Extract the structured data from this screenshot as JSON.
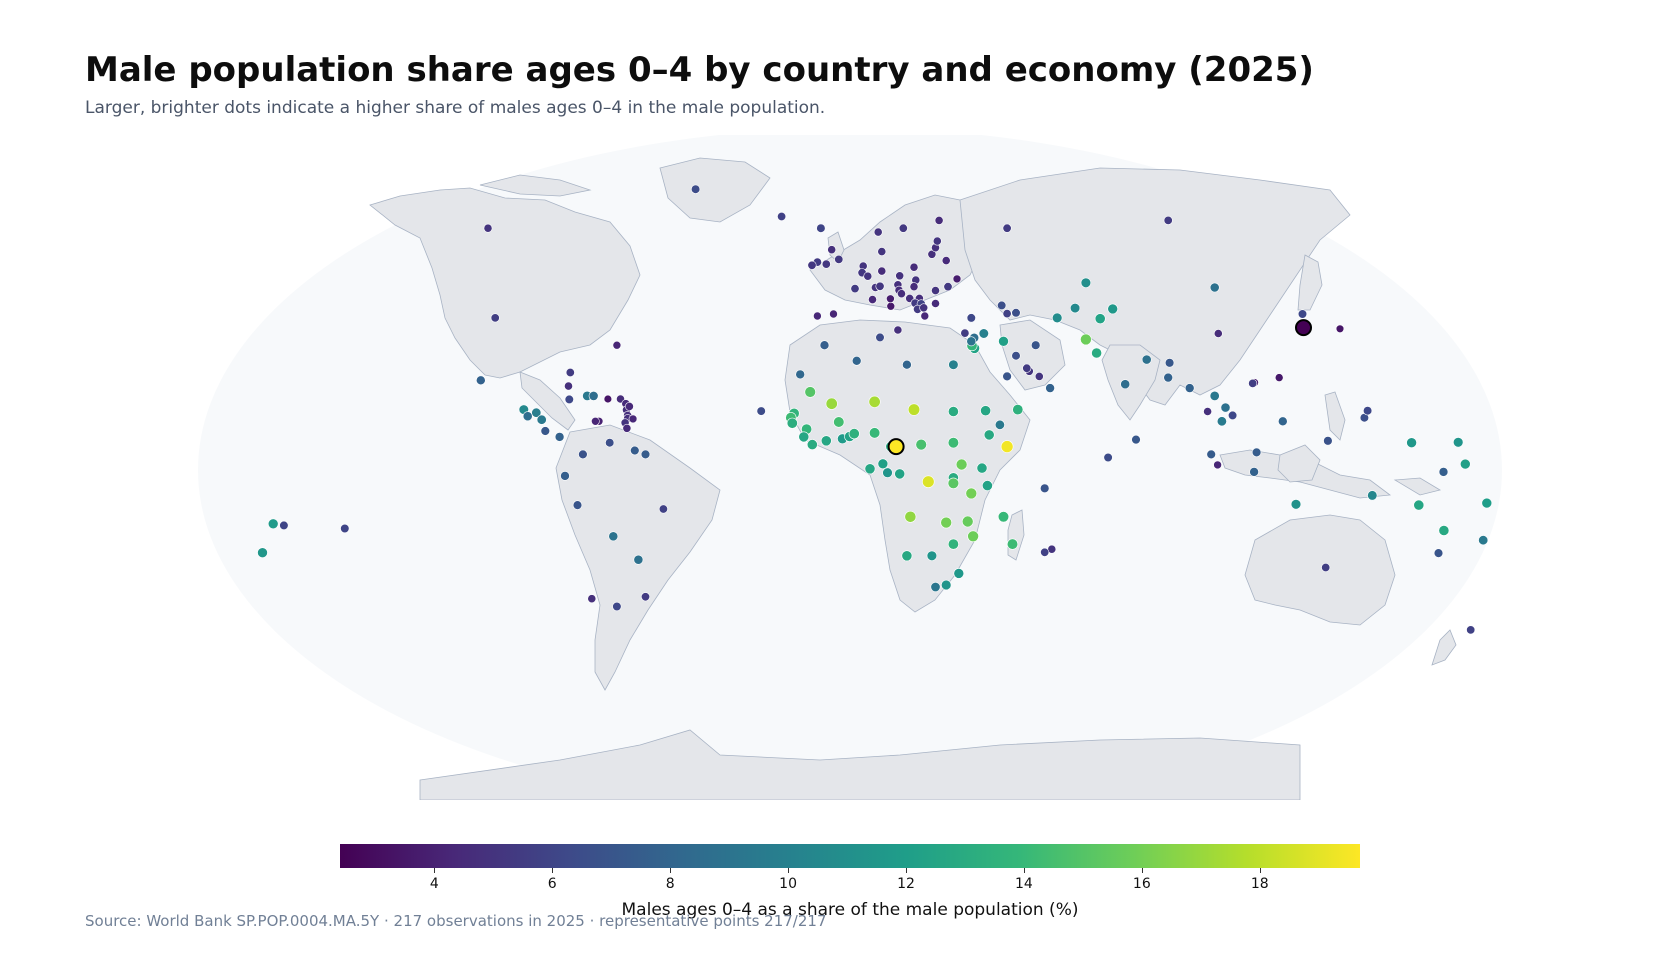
{
  "title": "Male population share ages 0–4 by country and economy (2025)",
  "subtitle": "Larger, brighter dots indicate a higher share of males ages 0–4 in the male population.",
  "source": "Source: World Bank SP.POP.0004.MA.5Y · 217 observations in 2025 · representative points 217/217",
  "colors": {
    "ocean": "#f7f9fb",
    "land": "#e4e6ea",
    "coast": "#a8b3c4",
    "scale": [
      "#440154",
      "#482878",
      "#3e4989",
      "#31688e",
      "#26828e",
      "#1f9e89",
      "#35b779",
      "#6ece58",
      "#b5de2b",
      "#fde725"
    ]
  },
  "colorbar": {
    "label": "Males ages 0–4 as a share of the male population (%)",
    "min": 2.4,
    "max": 19.7,
    "ticks": [
      "4",
      "6",
      "8",
      "10",
      "12",
      "14",
      "16",
      "18"
    ]
  },
  "chart_data": {
    "type": "scatter",
    "title": "Male population share ages 0–4 by country and economy (2025)",
    "value_label": "Males ages 0–4 as a share of the male population (%)",
    "points": [
      {
        "lon": -42,
        "lat": 72,
        "v": 6.4
      },
      {
        "lon": -18,
        "lat": 65,
        "v": 5.8
      },
      {
        "lon": -100,
        "lat": 62,
        "v": 5.0
      },
      {
        "lon": -98,
        "lat": 39,
        "v": 5.6
      },
      {
        "lon": -102,
        "lat": 23,
        "v": 7.8
      },
      {
        "lon": -64,
        "lat": 32,
        "v": 4.2
      },
      {
        "lon": -90,
        "lat": 15.5,
        "v": 10.6
      },
      {
        "lon": -86.5,
        "lat": 14.7,
        "v": 9.8
      },
      {
        "lon": -88.9,
        "lat": 13.8,
        "v": 8.6
      },
      {
        "lon": -85,
        "lat": 12.9,
        "v": 9.4
      },
      {
        "lon": -84,
        "lat": 10,
        "v": 7.2
      },
      {
        "lon": -80,
        "lat": 8.5,
        "v": 7.8
      },
      {
        "lon": -77.5,
        "lat": 21.5,
        "v": 4.8
      },
      {
        "lon": -77,
        "lat": 25,
        "v": 5.5
      },
      {
        "lon": -72.3,
        "lat": 19,
        "v": 9.4
      },
      {
        "lon": -70.5,
        "lat": 19,
        "v": 8.6
      },
      {
        "lon": -77.3,
        "lat": 18.1,
        "v": 6.2
      },
      {
        "lon": -66.5,
        "lat": 18.2,
        "v": 3.4
      },
      {
        "lon": -63,
        "lat": 18.2,
        "v": 4.6
      },
      {
        "lon": -61.5,
        "lat": 17,
        "v": 4.5
      },
      {
        "lon": -61.3,
        "lat": 15.4,
        "v": 4.8
      },
      {
        "lon": -61,
        "lat": 14,
        "v": 4.8
      },
      {
        "lon": -61,
        "lat": 13.2,
        "v": 4.8
      },
      {
        "lon": -59.5,
        "lat": 13.1,
        "v": 4.3
      },
      {
        "lon": -61.7,
        "lat": 12.1,
        "v": 5.0
      },
      {
        "lon": -61.2,
        "lat": 10.7,
        "v": 4.5
      },
      {
        "lon": -69,
        "lat": 12.5,
        "v": 4.0
      },
      {
        "lon": -70,
        "lat": 12.5,
        "v": 4.2
      },
      {
        "lon": -60.5,
        "lat": 16.3,
        "v": 4.4
      },
      {
        "lon": -73.5,
        "lat": 4,
        "v": 6.8
      },
      {
        "lon": -66,
        "lat": 7,
        "v": 6.6
      },
      {
        "lon": -59,
        "lat": 5,
        "v": 7.4
      },
      {
        "lon": -56,
        "lat": 4,
        "v": 7.4
      },
      {
        "lon": -78.5,
        "lat": -1.5,
        "v": 7.6
      },
      {
        "lon": -75,
        "lat": -9,
        "v": 7.0
      },
      {
        "lon": -65,
        "lat": -17,
        "v": 9.0
      },
      {
        "lon": -51,
        "lat": -10,
        "v": 5.8
      },
      {
        "lon": -58,
        "lat": -23,
        "v": 8.8
      },
      {
        "lon": -71,
        "lat": -33,
        "v": 4.8
      },
      {
        "lon": -64,
        "lat": -35,
        "v": 6.2
      },
      {
        "lon": -56,
        "lat": -32.5,
        "v": 5.4
      },
      {
        "lon": -160,
        "lat": -13.8,
        "v": 11.8
      },
      {
        "lon": -157,
        "lat": -14.2,
        "v": 6.0
      },
      {
        "lon": -163,
        "lat": -21.2,
        "v": 11.5
      },
      {
        "lon": -140,
        "lat": -15,
        "v": 6.0
      },
      {
        "lon": -23.7,
        "lat": 15.1,
        "v": 6.4
      },
      {
        "lon": -2,
        "lat": 54,
        "v": 5.3
      },
      {
        "lon": -8,
        "lat": 53.3,
        "v": 5.4
      },
      {
        "lon": -9.5,
        "lat": 52.5,
        "v": 5.2
      },
      {
        "lon": -4,
        "lat": 56.5,
        "v": 4.8
      },
      {
        "lon": -5.5,
        "lat": 52.8,
        "v": 5.2
      },
      {
        "lon": 2.5,
        "lat": 46.5,
        "v": 5.4
      },
      {
        "lon": -3.5,
        "lat": 40,
        "v": 4.2
      },
      {
        "lon": -8,
        "lat": 39.5,
        "v": 4.3
      },
      {
        "lon": 4.8,
        "lat": 52.3,
        "v": 5.0
      },
      {
        "lon": 4.5,
        "lat": 50.6,
        "v": 5.2
      },
      {
        "lon": 6.1,
        "lat": 49.7,
        "v": 5.0
      },
      {
        "lon": 10,
        "lat": 51,
        "v": 4.6
      },
      {
        "lon": 8.2,
        "lat": 46.8,
        "v": 5.0
      },
      {
        "lon": 9.5,
        "lat": 47.1,
        "v": 5.2
      },
      {
        "lon": 7.4,
        "lat": 43.7,
        "v": 4.4
      },
      {
        "lon": 12.5,
        "lat": 42,
        "v": 3.6
      },
      {
        "lon": 12.4,
        "lat": 43.9,
        "v": 3.8
      },
      {
        "lon": 14.5,
        "lat": 35.9,
        "v": 4.8
      },
      {
        "lon": 14.5,
        "lat": 47.5,
        "v": 4.8
      },
      {
        "lon": 15,
        "lat": 49.8,
        "v": 4.9
      },
      {
        "lon": 19,
        "lat": 52,
        "v": 4.6
      },
      {
        "lon": 19.5,
        "lat": 48.7,
        "v": 5.0
      },
      {
        "lon": 19,
        "lat": 47,
        "v": 4.6
      },
      {
        "lon": 14.8,
        "lat": 46.1,
        "v": 4.6
      },
      {
        "lon": 15.5,
        "lat": 45.2,
        "v": 4.7
      },
      {
        "lon": 17.8,
        "lat": 44,
        "v": 4.8
      },
      {
        "lon": 20.5,
        "lat": 44,
        "v": 4.7
      },
      {
        "lon": 19.3,
        "lat": 42.8,
        "v": 5.4
      },
      {
        "lon": 21,
        "lat": 42.6,
        "v": 5.9
      },
      {
        "lon": 20,
        "lat": 41.2,
        "v": 5.4
      },
      {
        "lon": 21.7,
        "lat": 41.6,
        "v": 5.0
      },
      {
        "lon": 22,
        "lat": 39.5,
        "v": 4.3
      },
      {
        "lon": 25,
        "lat": 42.7,
        "v": 4.5
      },
      {
        "lon": 25,
        "lat": 46,
        "v": 5.0
      },
      {
        "lon": 28.5,
        "lat": 47,
        "v": 5.3
      },
      {
        "lon": 31,
        "lat": 49,
        "v": 3.8
      },
      {
        "lon": 28,
        "lat": 53.7,
        "v": 4.5
      },
      {
        "lon": 24,
        "lat": 55.3,
        "v": 4.8
      },
      {
        "lon": 25,
        "lat": 57,
        "v": 4.8
      },
      {
        "lon": 25.5,
        "lat": 58.7,
        "v": 5.1
      },
      {
        "lon": 10,
        "lat": 56,
        "v": 5.1
      },
      {
        "lon": 9,
        "lat": 61,
        "v": 5.0
      },
      {
        "lon": 16,
        "lat": 62,
        "v": 5.3
      },
      {
        "lon": 26,
        "lat": 64,
        "v": 4.6
      },
      {
        "lon": -7,
        "lat": 62,
        "v": 6.0
      },
      {
        "lon": 45,
        "lat": 62,
        "v": 5.4
      },
      {
        "lon": 33.2,
        "lat": 35.1,
        "v": 5.5
      },
      {
        "lon": 35,
        "lat": 39,
        "v": 6.2
      },
      {
        "lon": 43.5,
        "lat": 42.2,
        "v": 6.6
      },
      {
        "lon": 45,
        "lat": 40.1,
        "v": 5.8
      },
      {
        "lon": 47.5,
        "lat": 40.3,
        "v": 6.6
      },
      {
        "lon": 67,
        "lat": 48,
        "v": 11.0
      },
      {
        "lon": 64,
        "lat": 41.5,
        "v": 10.6
      },
      {
        "lon": 59,
        "lat": 39,
        "v": 10.8
      },
      {
        "lon": 74.5,
        "lat": 41.3,
        "v": 11.6
      },
      {
        "lon": 71,
        "lat": 38.8,
        "v": 12.4
      },
      {
        "lon": 67,
        "lat": 33.5,
        "v": 15.8
      },
      {
        "lon": 70,
        "lat": 30,
        "v": 13.0
      },
      {
        "lon": 78,
        "lat": 22,
        "v": 8.6
      },
      {
        "lon": 84,
        "lat": 28.3,
        "v": 8.8
      },
      {
        "lon": 90.4,
        "lat": 27.5,
        "v": 7.2
      },
      {
        "lon": 90,
        "lat": 23.7,
        "v": 7.8
      },
      {
        "lon": 81,
        "lat": 7.8,
        "v": 7.2
      },
      {
        "lon": 73.2,
        "lat": 3.2,
        "v": 6.4
      },
      {
        "lon": 96,
        "lat": 21,
        "v": 7.8
      },
      {
        "lon": 101,
        "lat": 15,
        "v": 4.8
      },
      {
        "lon": 103,
        "lat": 19,
        "v": 9.4
      },
      {
        "lon": 105,
        "lat": 12.5,
        "v": 9.6
      },
      {
        "lon": 106,
        "lat": 16,
        "v": 8.8
      },
      {
        "lon": 108,
        "lat": 14,
        "v": 6.2
      },
      {
        "lon": 102,
        "lat": 4,
        "v": 7.4
      },
      {
        "lon": 103.8,
        "lat": 1.3,
        "v": 4.2
      },
      {
        "lon": 114.7,
        "lat": 4.5,
        "v": 7.4
      },
      {
        "lon": 114,
        "lat": -0.5,
        "v": 7.8
      },
      {
        "lon": 125.7,
        "lat": -8.8,
        "v": 11.2
      },
      {
        "lon": 122,
        "lat": 12.5,
        "v": 8.0
      },
      {
        "lon": 134.6,
        "lat": 7.5,
        "v": 6.8
      },
      {
        "lon": 144.8,
        "lat": 13.4,
        "v": 6.6
      },
      {
        "lon": 145.7,
        "lat": 15.2,
        "v": 6.2
      },
      {
        "lon": 104,
        "lat": 35,
        "v": 4.6
      },
      {
        "lon": 103,
        "lat": 46.8,
        "v": 8.8
      },
      {
        "lon": 127.5,
        "lat": 40,
        "v": 6.2
      },
      {
        "lon": 127.8,
        "lat": 36.5,
        "v": 2.4
      },
      {
        "lon": 138,
        "lat": 36.2,
        "v": 3.4
      },
      {
        "lon": 114.1,
        "lat": 22.4,
        "v": 3.6
      },
      {
        "lon": 113.6,
        "lat": 22.2,
        "v": 5.6
      },
      {
        "lon": 121,
        "lat": 23.7,
        "v": 3.6
      },
      {
        "lon": 90,
        "lat": 64,
        "v": 5.4
      },
      {
        "lon": 134,
        "lat": -25,
        "v": 5.6
      },
      {
        "lon": 174.5,
        "lat": -41,
        "v": 5.8
      },
      {
        "lon": 147,
        "lat": -6.5,
        "v": 10.4
      },
      {
        "lon": 160,
        "lat": -9,
        "v": 12.6
      },
      {
        "lon": 158,
        "lat": 7,
        "v": 11.6
      },
      {
        "lon": 171,
        "lat": 7.1,
        "v": 11.4
      },
      {
        "lon": 173,
        "lat": 1.5,
        "v": 12.2
      },
      {
        "lon": 179,
        "lat": -8.5,
        "v": 12.0
      },
      {
        "lon": 167,
        "lat": -15.5,
        "v": 12.8
      },
      {
        "lon": 178,
        "lat": -18,
        "v": 9.4
      },
      {
        "lon": 165.5,
        "lat": -21.3,
        "v": 7.0
      },
      {
        "lon": 166.9,
        "lat": -0.5,
        "v": 7.6
      },
      {
        "lon": -6,
        "lat": 32,
        "v": 7.6
      },
      {
        "lon": 3,
        "lat": 28,
        "v": 8.0
      },
      {
        "lon": 9.5,
        "lat": 34,
        "v": 6.4
      },
      {
        "lon": 17,
        "lat": 27,
        "v": 8.0
      },
      {
        "lon": 30,
        "lat": 27,
        "v": 10.0
      },
      {
        "lon": 35.9,
        "lat": 31.2,
        "v": 12.4
      },
      {
        "lon": 35.2,
        "lat": 31.9,
        "v": 13.8
      },
      {
        "lon": 35.8,
        "lat": 33.9,
        "v": 8.6
      },
      {
        "lon": 38.5,
        "lat": 35,
        "v": 10.0
      },
      {
        "lon": 35,
        "lat": 33,
        "v": 9.0
      },
      {
        "lon": 44,
        "lat": 33,
        "v": 12.2
      },
      {
        "lon": 53,
        "lat": 32,
        "v": 7.0
      },
      {
        "lon": 45,
        "lat": 24,
        "v": 7.0
      },
      {
        "lon": 47.5,
        "lat": 29.3,
        "v": 6.6
      },
      {
        "lon": 51.2,
        "lat": 25.3,
        "v": 5.0
      },
      {
        "lon": 50.5,
        "lat": 26.1,
        "v": 5.4
      },
      {
        "lon": 54,
        "lat": 24,
        "v": 5.0
      },
      {
        "lon": 57,
        "lat": 21,
        "v": 7.8
      },
      {
        "lon": 48,
        "lat": 15.5,
        "v": 13.4
      },
      {
        "lon": -12.8,
        "lat": 24.5,
        "v": 8.2
      },
      {
        "lon": -10,
        "lat": 20,
        "v": 15.0
      },
      {
        "lon": -14.5,
        "lat": 14.5,
        "v": 13.6
      },
      {
        "lon": -15.4,
        "lat": 13.4,
        "v": 14.2
      },
      {
        "lon": -15,
        "lat": 12,
        "v": 13.2
      },
      {
        "lon": -11,
        "lat": 10.5,
        "v": 13.8
      },
      {
        "lon": -11.8,
        "lat": 8.5,
        "v": 12.6
      },
      {
        "lon": -9.4,
        "lat": 6.5,
        "v": 13.0
      },
      {
        "lon": -5.5,
        "lat": 7.5,
        "v": 12.6
      },
      {
        "lon": -2,
        "lat": 12.3,
        "v": 14.4
      },
      {
        "lon": -4,
        "lat": 17,
        "v": 17.0
      },
      {
        "lon": -1,
        "lat": 8,
        "v": 11.8
      },
      {
        "lon": 1,
        "lat": 8.6,
        "v": 12.4
      },
      {
        "lon": 2.3,
        "lat": 9.3,
        "v": 13.4
      },
      {
        "lon": 8,
        "lat": 9.5,
        "v": 14.0
      },
      {
        "lon": 8,
        "lat": 17.5,
        "v": 17.4
      },
      {
        "lon": 19,
        "lat": 15.5,
        "v": 18.0
      },
      {
        "lon": 12.5,
        "lat": 6,
        "v": 12.8
      },
      {
        "lon": 10.3,
        "lat": 1.6,
        "v": 12.2
      },
      {
        "lon": 11.6,
        "lat": -0.7,
        "v": 11.4
      },
      {
        "lon": 15,
        "lat": -1,
        "v": 12.4
      },
      {
        "lon": 21,
        "lat": 6.5,
        "v": 14.6
      },
      {
        "lon": 23,
        "lat": -3,
        "v": 18.8
      },
      {
        "lon": 30,
        "lat": 15,
        "v": 13.0
      },
      {
        "lon": 30,
        "lat": 7,
        "v": 14.2
      },
      {
        "lon": 39,
        "lat": 15.2,
        "v": 12.6
      },
      {
        "lon": 43,
        "lat": 11.6,
        "v": 9.4
      },
      {
        "lon": 40,
        "lat": 9,
        "v": 12.8
      },
      {
        "lon": 45,
        "lat": 6,
        "v": 19.4
      },
      {
        "lon": 38,
        "lat": 0.5,
        "v": 12.6
      },
      {
        "lon": 32.3,
        "lat": 1.4,
        "v": 15.8
      },
      {
        "lon": 30,
        "lat": -2,
        "v": 13.0
      },
      {
        "lon": 30,
        "lat": -3.4,
        "v": 15.2
      },
      {
        "lon": 35,
        "lat": -6,
        "v": 16.0
      },
      {
        "lon": 39.5,
        "lat": -4,
        "v": 12.4
      },
      {
        "lon": 18,
        "lat": -12,
        "v": 16.8
      },
      {
        "lon": 28,
        "lat": -13.5,
        "v": 16.0
      },
      {
        "lon": 34,
        "lat": -13.2,
        "v": 15.6
      },
      {
        "lon": 35.5,
        "lat": -17,
        "v": 15.8
      },
      {
        "lon": 30,
        "lat": -19,
        "v": 13.6
      },
      {
        "lon": 24,
        "lat": -22,
        "v": 11.4
      },
      {
        "lon": 17,
        "lat": -22,
        "v": 12.8
      },
      {
        "lon": 25,
        "lat": -30,
        "v": 9.2
      },
      {
        "lon": 28,
        "lat": -29.5,
        "v": 11.4
      },
      {
        "lon": 31.5,
        "lat": -26.5,
        "v": 11.6
      },
      {
        "lon": 46.5,
        "lat": -19,
        "v": 14.2
      },
      {
        "lon": 44,
        "lat": -12,
        "v": 14.0
      },
      {
        "lon": 55.5,
        "lat": -4.7,
        "v": 7.0
      },
      {
        "lon": 57.5,
        "lat": -20.3,
        "v": 5.0
      },
      {
        "lon": 55.5,
        "lat": -21.1,
        "v": 5.8
      },
      {
        "lon": 6.7,
        "lat": 0.3,
        "v": 12.6
      }
    ],
    "highlighted": [
      {
        "lon": 127.8,
        "lat": 36.5,
        "v": 2.4
      },
      {
        "lon": 14,
        "lat": 6,
        "v": 19.7
      }
    ]
  }
}
